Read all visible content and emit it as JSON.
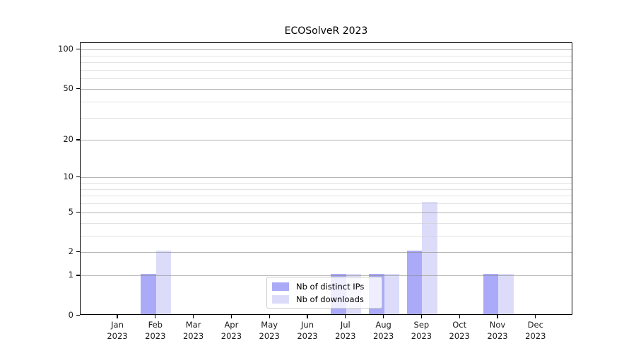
{
  "chart_data": {
    "type": "bar",
    "title": "ECOSolveR 2023",
    "categories": [
      "Jan",
      "Feb",
      "Mar",
      "Apr",
      "May",
      "Jun",
      "Jul",
      "Aug",
      "Sep",
      "Oct",
      "Nov",
      "Dec"
    ],
    "x_year_label": "2023",
    "series": [
      {
        "name": "Nb of distinct IPs",
        "color": "#aaaaf8",
        "values": [
          0,
          1,
          0,
          0,
          0,
          0,
          1,
          1,
          2,
          0,
          1,
          0
        ]
      },
      {
        "name": "Nb of downloads",
        "color": "#dcdcfa",
        "values": [
          0,
          2,
          0,
          0,
          0,
          0,
          1,
          1,
          6,
          0,
          1,
          0
        ]
      }
    ],
    "xlabel": "",
    "ylabel": "",
    "y_scale": "log1p",
    "ylim": [
      0,
      112
    ],
    "y_ticks": [
      0,
      1,
      2,
      5,
      10,
      20,
      50,
      100
    ],
    "y_minor_gridlines": [
      3,
      4,
      6,
      7,
      8,
      9,
      30,
      40,
      60,
      70,
      80,
      90
    ],
    "grid": "on",
    "legend_position": "inside-bottom-center",
    "colors": {
      "major_grid": "#b4b4b4",
      "minor_grid": "#e6e6e6",
      "axis": "#000000",
      "background": "#ffffff"
    }
  }
}
